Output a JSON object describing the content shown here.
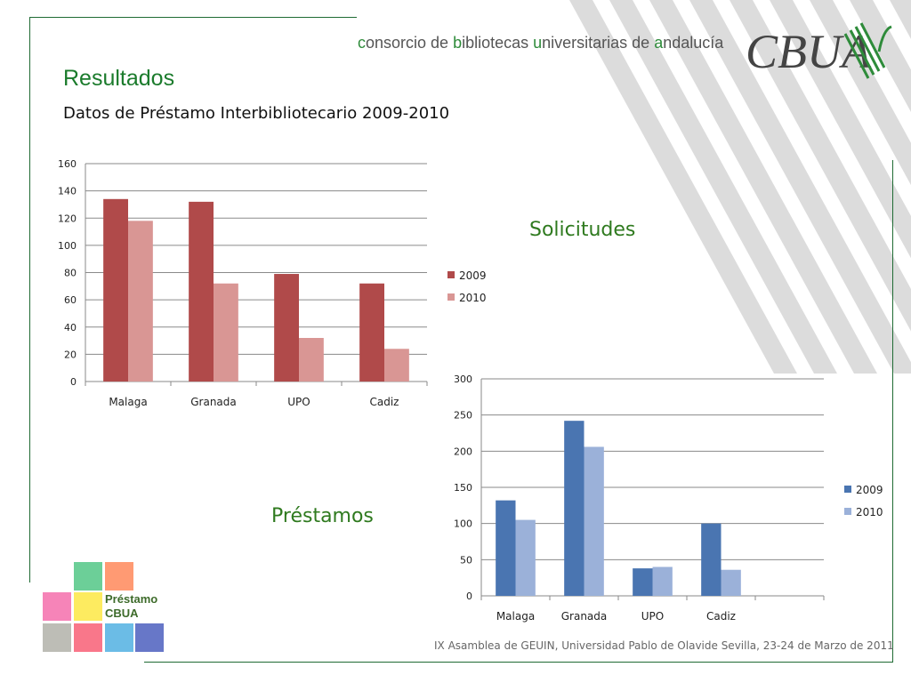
{
  "header": {
    "consortium_parts": [
      {
        "text": "c",
        "hl": true
      },
      {
        "text": "onsorcio de ",
        "hl": false
      },
      {
        "text": "b",
        "hl": true
      },
      {
        "text": "ibliotecas ",
        "hl": false
      },
      {
        "text": "u",
        "hl": true
      },
      {
        "text": "niversitarias de ",
        "hl": false
      },
      {
        "text": "a",
        "hl": true
      },
      {
        "text": "ndalucía",
        "hl": false
      }
    ],
    "logo_text": "CBUA"
  },
  "title": "Resultados",
  "subtitle": "Datos de Préstamo Interbibliotecario 2009-2010",
  "labels": {
    "solicitudes": "Solicitudes",
    "prestamos": "Préstamos"
  },
  "badge": {
    "line1": "Préstamo",
    "line2": "CBUA",
    "colors": [
      "#6ccf98",
      "#ff9a73",
      "#f684b8",
      "#fdeb60",
      "#bdbdb6",
      "#f9778a",
      "#6bbce6",
      "#6777c8"
    ]
  },
  "footer": "IX Asamblea de GEUIN, Universidad Pablo de Olavide Sevilla, 23-24 de Marzo de 2011",
  "colors": {
    "green_line": "#1f6b33",
    "stripe": "#dcdcdc",
    "red_2009": "#b04a4a",
    "red_2010": "#d99694",
    "blue_2009": "#4a75b1",
    "blue_2010": "#9bb1d9"
  },
  "chart_data": [
    {
      "type": "bar",
      "categories": [
        "Malaga",
        "Granada",
        "UPO",
        "Cadiz"
      ],
      "series": [
        {
          "name": "2009",
          "values": [
            134,
            132,
            79,
            72
          ]
        },
        {
          "name": "2010",
          "values": [
            118,
            72,
            32,
            24
          ]
        }
      ],
      "ylim": [
        0,
        160
      ],
      "yticks": [
        0,
        20,
        40,
        60,
        80,
        100,
        120,
        140,
        160
      ],
      "grid": true,
      "legend": "right",
      "title": "",
      "xlabel": "",
      "ylabel": ""
    },
    {
      "type": "bar",
      "categories": [
        "Malaga",
        "Granada",
        "UPO",
        "Cadiz",
        ""
      ],
      "series": [
        {
          "name": "2009",
          "values": [
            132,
            242,
            38,
            100,
            null
          ]
        },
        {
          "name": "2010",
          "values": [
            105,
            206,
            40,
            36,
            null
          ]
        }
      ],
      "ylim": [
        0,
        300
      ],
      "yticks": [
        0,
        50,
        100,
        150,
        200,
        250,
        300
      ],
      "grid": true,
      "legend": "right",
      "title": "",
      "xlabel": "",
      "ylabel": ""
    }
  ]
}
